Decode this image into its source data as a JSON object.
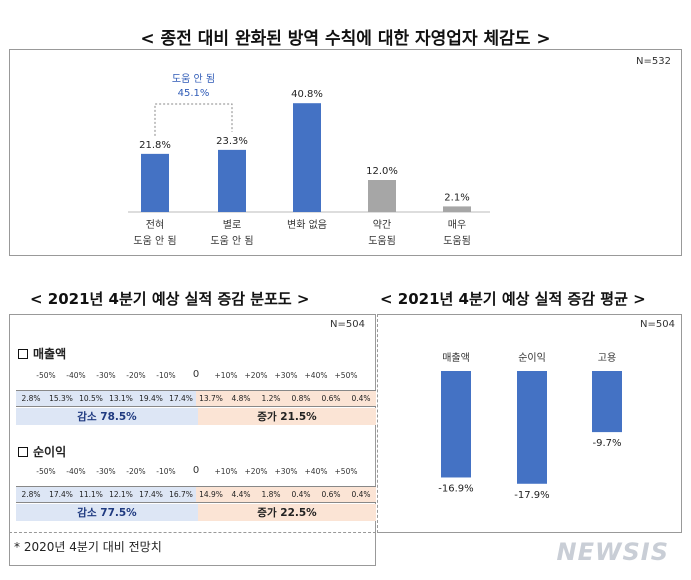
{
  "title_top": "< 종전 대비 완화된 방역 수칙에 대한 자영업자 체감도 >",
  "title_left": "< 2021년 4분기 예상 실적 증감 분포도 >",
  "title_right": "< 2021년 4분기 예상 실적 증감 평균 >",
  "chart_data": [
    {
      "type": "bar",
      "title": "종전 대비 완화된 방역 수칙에 대한 자영업자 체감도",
      "n_label": "N=532",
      "categories": [
        "전혀\n도움 안 됨",
        "별로\n도움 안 됨",
        "변화 없음",
        "약간\n도움됨",
        "매우\n도움됨"
      ],
      "values": [
        21.8,
        23.3,
        40.8,
        12.0,
        2.1
      ],
      "value_labels": [
        "21.8%",
        "23.3%",
        "40.8%",
        "12.0%",
        "2.1%"
      ],
      "colors": [
        "#4472c4",
        "#4472c4",
        "#4472c4",
        "#a6a6a6",
        "#a6a6a6"
      ],
      "annotation": {
        "label": "도움 안 됨",
        "value": "45.1%"
      },
      "ylim": [
        0,
        45
      ]
    },
    {
      "type": "table",
      "title": "2021년 4분기 예상 실적 증감 분포도",
      "n_label": "N=504",
      "ticks": [
        "-50%",
        "-40%",
        "-30%",
        "-20%",
        "-10%",
        "0",
        "+10%",
        "+20%",
        "+30%",
        "+40%",
        "+50%"
      ],
      "rows": [
        {
          "name": "매출액",
          "cells": [
            "2.8%",
            "15.3%",
            "10.5%",
            "13.1%",
            "19.4%",
            "17.4%",
            "13.7%",
            "4.8%",
            "1.2%",
            "0.8%",
            "0.6%",
            "0.4%"
          ],
          "decrease": "감소 78.5%",
          "increase": "증가 21.5%"
        },
        {
          "name": "순이익",
          "cells": [
            "2.8%",
            "17.4%",
            "11.1%",
            "12.1%",
            "17.4%",
            "16.7%",
            "14.9%",
            "4.4%",
            "1.8%",
            "0.4%",
            "0.6%",
            "0.4%"
          ],
          "decrease": "감소 77.5%",
          "increase": "증가 22.5%"
        }
      ]
    },
    {
      "type": "bar",
      "title": "2021년 4분기 예상 실적 증감 평균",
      "n_label": "N=504",
      "categories": [
        "매출액",
        "순이익",
        "고용"
      ],
      "values": [
        -16.9,
        -17.9,
        -9.7
      ],
      "value_labels": [
        "-16.9%",
        "-17.9%",
        "-9.7%"
      ],
      "color": "#4472c4",
      "ylim": [
        -20,
        0
      ]
    }
  ],
  "footnote": "* 2020년 4분기 대비 전망치",
  "watermark": "NEWSIS"
}
